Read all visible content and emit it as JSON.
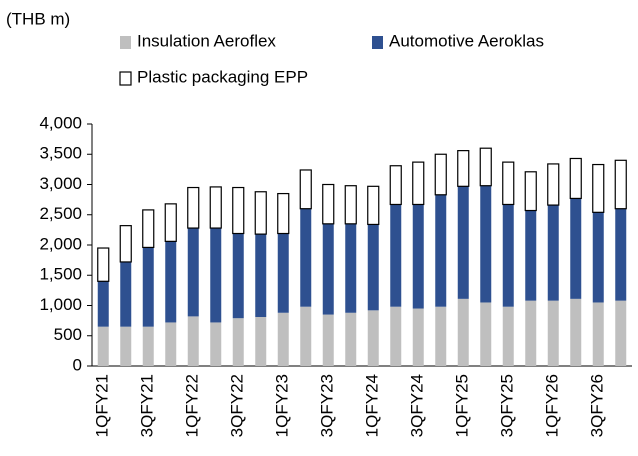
{
  "chart_data": {
    "type": "stacked_bar",
    "y_label": "(THB m)",
    "categories": [
      "1QFY21",
      null,
      "3QFY21",
      null,
      "1QFY22",
      null,
      "3QFY22",
      null,
      "1QFY23",
      null,
      "3QFY23",
      null,
      "1QFY24",
      null,
      "3QFY24",
      null,
      "1QFY25",
      null,
      "3QFY25",
      null,
      "1QFY26",
      null,
      "3QFY26",
      null
    ],
    "series": [
      {
        "name": "Insulation Aeroflex",
        "color": "#bfbfbf",
        "values": [
          650,
          650,
          650,
          720,
          820,
          720,
          790,
          810,
          880,
          980,
          850,
          880,
          920,
          980,
          950,
          980,
          1110,
          1050,
          980,
          1080,
          1080,
          1110,
          1050,
          1080
        ]
      },
      {
        "name": "Automotive Aeroklas",
        "color": "#2e5090",
        "values": [
          750,
          1070,
          1310,
          1340,
          1460,
          1560,
          1400,
          1370,
          1310,
          1620,
          1500,
          1470,
          1420,
          1690,
          1720,
          1850,
          1860,
          1930,
          1690,
          1490,
          1580,
          1660,
          1490,
          1520
        ]
      },
      {
        "name": "Plastic packaging EPP",
        "color": "#ffffff",
        "values": [
          550,
          600,
          620,
          620,
          670,
          680,
          760,
          700,
          660,
          640,
          650,
          630,
          630,
          640,
          700,
          670,
          590,
          620,
          700,
          640,
          680,
          660,
          790,
          800
        ]
      }
    ],
    "ylim": [
      0,
      4000
    ],
    "yticks": [
      0,
      500,
      {
        "value": 1000,
        "label": "1,000"
      },
      {
        "value": 1500,
        "label": "1,500"
      },
      {
        "value": 2000,
        "label": "2,000"
      },
      {
        "value": 2500,
        "label": "2,500"
      },
      {
        "value": 3000,
        "label": "3,000"
      },
      {
        "value": 3500,
        "label": "3,500"
      },
      {
        "value": 4000,
        "label": "4,000"
      }
    ],
    "legend": "top"
  }
}
